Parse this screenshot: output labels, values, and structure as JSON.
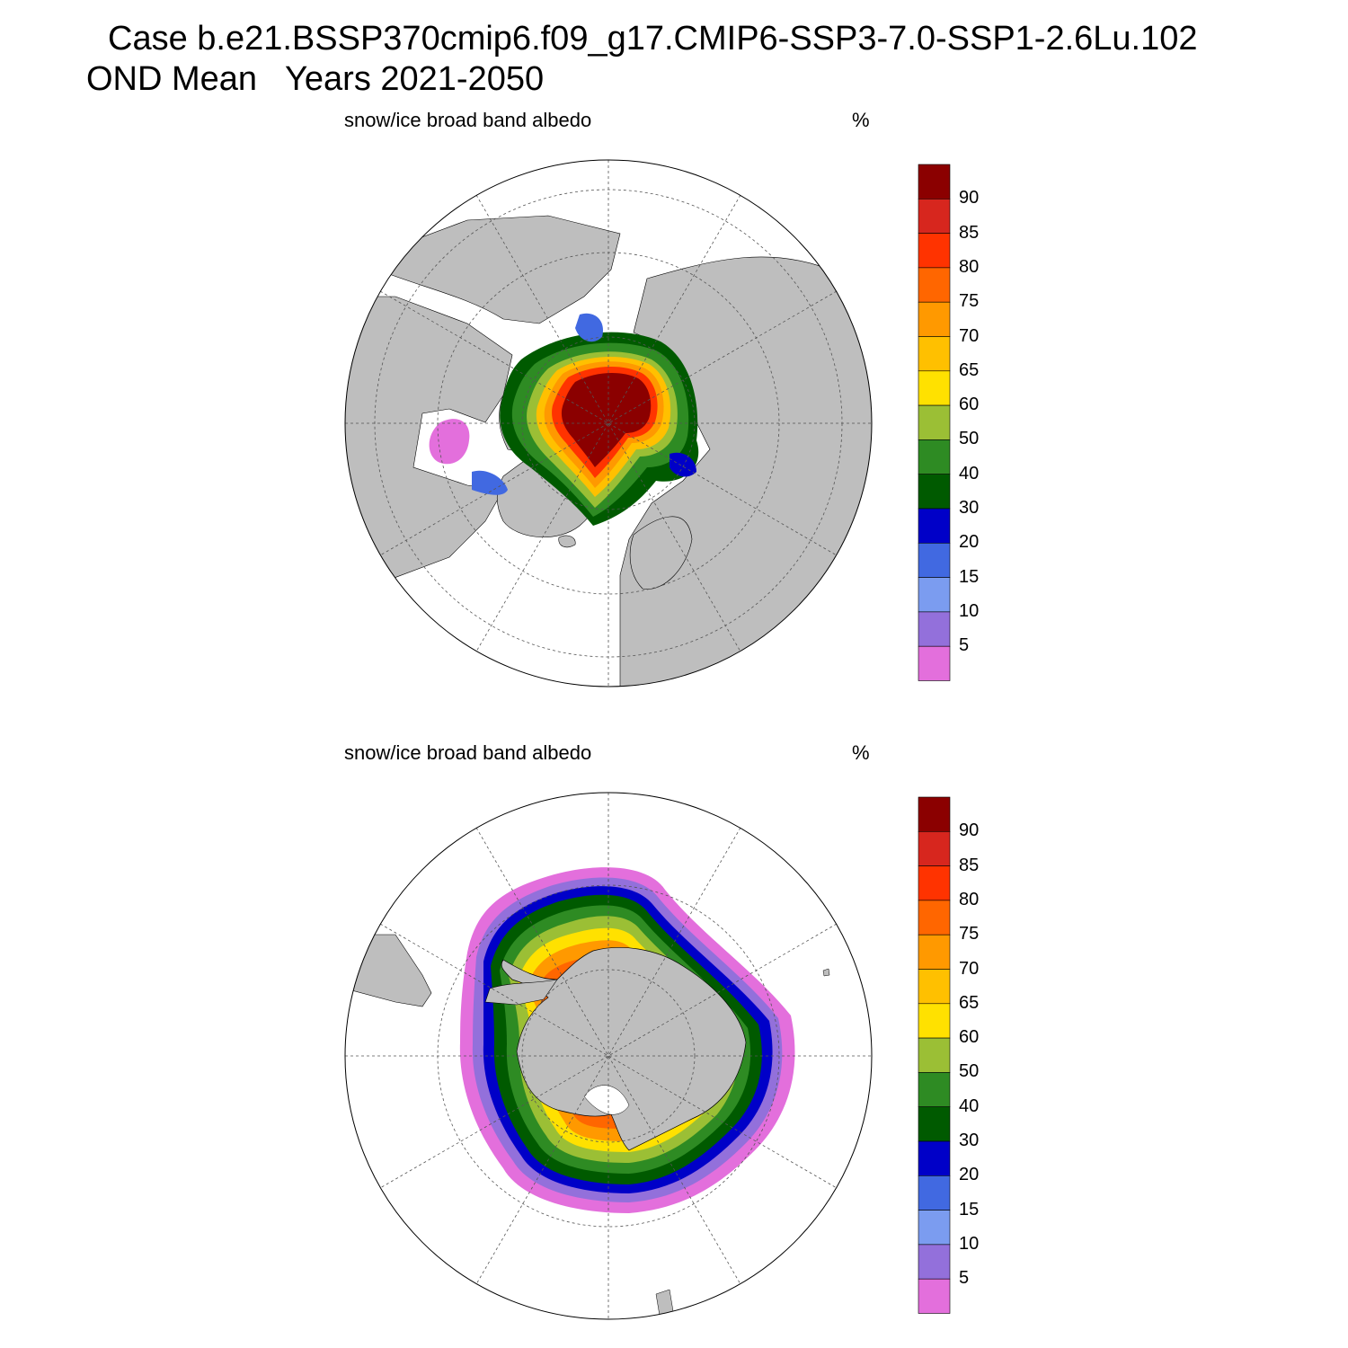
{
  "header": {
    "line1": "Case b.e21.BSSP370cmip6.f09_g17.CMIP6-SSP3-7.0-SSP1-2.6Lu.102",
    "line2": "OND Mean   Years 2021-2050"
  },
  "panels": [
    {
      "hemisphere": "north",
      "variable": "snow/ice broad band albedo",
      "units": "%"
    },
    {
      "hemisphere": "south",
      "variable": "snow/ice broad band albedo",
      "units": "%"
    }
  ],
  "colorbar": {
    "labels": [
      "90",
      "85",
      "80",
      "75",
      "70",
      "65",
      "60",
      "50",
      "40",
      "30",
      "20",
      "15",
      "10",
      "5"
    ],
    "colors": [
      "#8b0000",
      "#d7261e",
      "#ff3300",
      "#ff6600",
      "#ff9900",
      "#ffc000",
      "#ffe100",
      "#9bbf35",
      "#2e8b23",
      "#005a00",
      "#0000c8",
      "#4169e1",
      "#7b9cf0",
      "#9370db",
      "#e36fdc"
    ]
  },
  "chart_data": {
    "type": "map",
    "projection": "polar stereographic",
    "contour_levels": [
      5,
      10,
      15,
      20,
      30,
      40,
      50,
      60,
      65,
      70,
      75,
      80,
      85,
      90
    ],
    "fill_colors": [
      "#e36fdc",
      "#9370db",
      "#7b9cf0",
      "#4169e1",
      "#0000c8",
      "#005a00",
      "#2e8b23",
      "#9bbf35",
      "#ffe100",
      "#ffc000",
      "#ff9900",
      "#ff6600",
      "#ff3300",
      "#d7261e",
      "#8b0000"
    ],
    "land_color": "#bebebe"
  }
}
